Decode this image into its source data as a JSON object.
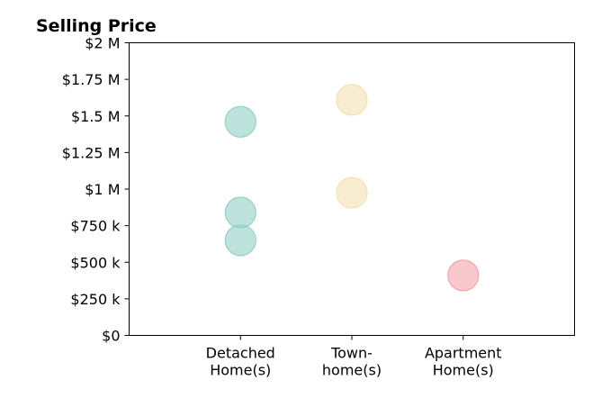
{
  "chart_data": {
    "type": "scatter",
    "title": "Selling Price",
    "xlabel": "",
    "ylabel": "",
    "categories": [
      [
        "Detached",
        "Home(s)"
      ],
      [
        "Town-",
        "home(s)"
      ],
      [
        "Apartment",
        "Home(s)"
      ]
    ],
    "xlim": [
      0,
      4
    ],
    "ylim": [
      0,
      2000000
    ],
    "y_ticks": [
      {
        "value": 0,
        "label": "$0"
      },
      {
        "value": 250000,
        "label": "$250 k"
      },
      {
        "value": 500000,
        "label": "$500 k"
      },
      {
        "value": 750000,
        "label": "$750 k"
      },
      {
        "value": 1000000,
        "label": "$1 M"
      },
      {
        "value": 1250000,
        "label": "$1.25 M"
      },
      {
        "value": 1500000,
        "label": "$1.5 M"
      },
      {
        "value": 1750000,
        "label": "$1.75 M"
      },
      {
        "value": 2000000,
        "label": "$2 M"
      }
    ],
    "grid": false,
    "points": [
      {
        "category": 0,
        "value": 1460000,
        "color": "#93d0c4"
      },
      {
        "category": 0,
        "value": 840000,
        "color": "#93d0c4"
      },
      {
        "category": 0,
        "value": 650000,
        "color": "#93d0c4"
      },
      {
        "category": 1,
        "value": 1610000,
        "color": "#f4e1b0"
      },
      {
        "category": 1,
        "value": 975000,
        "color": "#f4e1b0"
      },
      {
        "category": 2,
        "value": 410000,
        "color": "#f5a3ab"
      }
    ]
  }
}
